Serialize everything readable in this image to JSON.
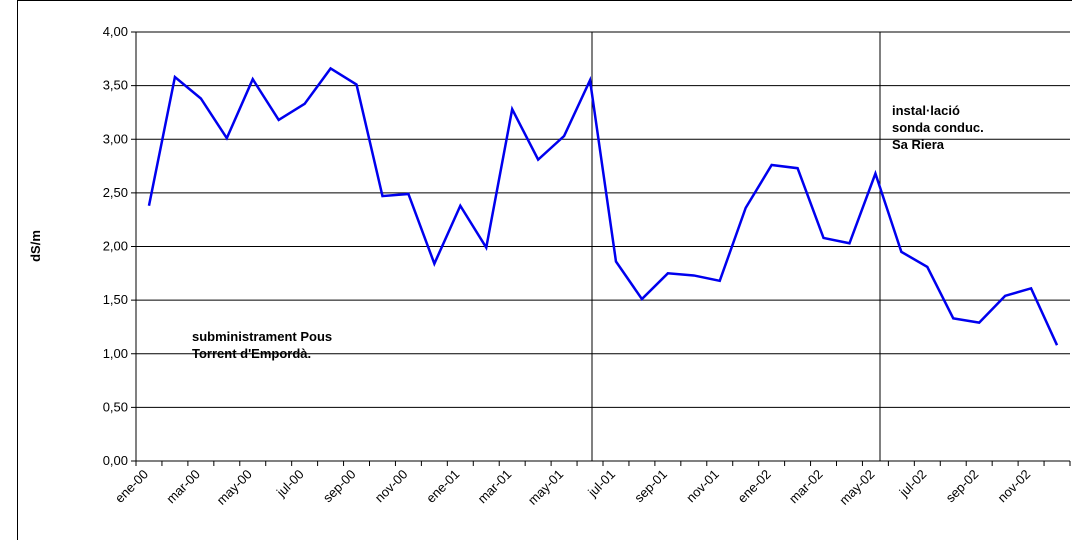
{
  "chart_data": {
    "type": "line",
    "y_label": "dS/m",
    "categories": [
      "ene-00",
      null,
      "mar-00",
      null,
      "may-00",
      null,
      "jul-00",
      null,
      "sep-00",
      null,
      "nov-00",
      null,
      "ene-01",
      null,
      "mar-01",
      null,
      "may-01",
      null,
      "jul-01",
      null,
      "sep-01",
      null,
      "nov-01",
      null,
      "ene-02",
      null,
      "mar-02",
      null,
      "may-02",
      null,
      "jul-02",
      null,
      "sep-02",
      null,
      "nov-02",
      null
    ],
    "series": [
      {
        "name": "dS/m",
        "color": "#0000ee",
        "values": [
          2.38,
          3.58,
          3.38,
          3.01,
          3.56,
          3.18,
          3.33,
          3.66,
          3.51,
          2.47,
          2.49,
          1.84,
          2.38,
          1.99,
          3.28,
          2.81,
          3.03,
          3.55,
          1.86,
          1.51,
          1.75,
          1.73,
          1.68,
          2.36,
          2.76,
          2.73,
          2.08,
          2.03,
          2.68,
          1.95,
          1.81,
          1.33,
          1.29,
          1.54,
          1.61,
          1.08
        ]
      }
    ],
    "ylim": [
      0,
      4
    ],
    "yticks": [
      {
        "value": 0,
        "label": "0,00"
      },
      {
        "value": 0.5,
        "label": "0,50"
      },
      {
        "value": 1,
        "label": "1,00"
      },
      {
        "value": 1.5,
        "label": "1,50"
      },
      {
        "value": 2,
        "label": "2,00"
      },
      {
        "value": 2.5,
        "label": "2,50"
      },
      {
        "value": 3,
        "label": "3,00"
      },
      {
        "value": 3.5,
        "label": "3,50"
      },
      {
        "value": 4,
        "label": "4,00"
      }
    ],
    "grid": true,
    "annotations": [
      {
        "lines": [
          "subministrament Pous",
          "Torrent d'Empordà."
        ]
      },
      {
        "lines": [
          "instal·lació",
          "sonda conduc.",
          "Sa Riera"
        ]
      }
    ]
  }
}
